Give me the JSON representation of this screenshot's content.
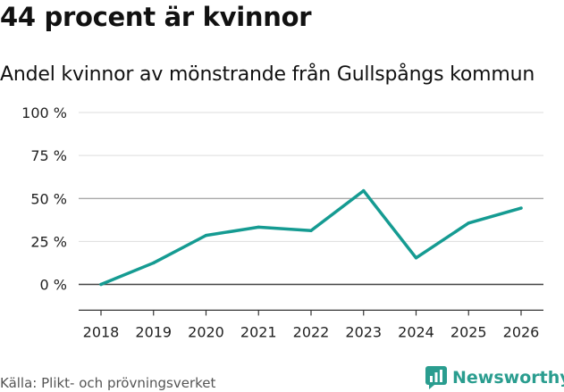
{
  "title": "44 procent är kvinnor",
  "subtitle": "Andel kvinnor av mönstrande från Gullspångs kommun",
  "source": "Källa: Plikt- och prövningsverket",
  "brand": "Newsworthy",
  "colors": {
    "line": "#159b92",
    "brand": "#2a9d8f",
    "grid": "#dddddd",
    "zero": "#444444"
  },
  "chart_data": {
    "type": "line",
    "title": "44 procent är kvinnor",
    "subtitle": "Andel kvinnor av mönstrande från Gullspångs kommun",
    "xlabel": "",
    "ylabel": "",
    "x": [
      "2018",
      "2019",
      "2020",
      "2021",
      "2022",
      "2023",
      "2024",
      "2025",
      "2026"
    ],
    "series": [
      {
        "name": "Andel kvinnor",
        "values": [
          0,
          12.5,
          28.5,
          33.3,
          31.3,
          54.5,
          15.4,
          35.7,
          44.4
        ]
      }
    ],
    "ylim": [
      -15,
      100
    ],
    "yticks": [
      0,
      25,
      50,
      75,
      100
    ],
    "ytick_labels": [
      "0 %",
      "25 %",
      "50 %",
      "75 %",
      "100 %"
    ],
    "grid": true,
    "legend": "none"
  }
}
